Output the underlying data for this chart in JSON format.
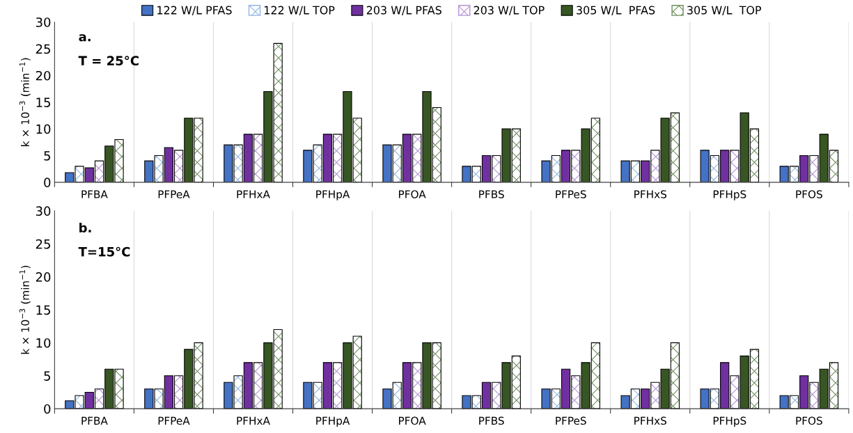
{
  "chart_data": [
    {
      "type": "bar",
      "ylabel": "k × 10$^{−3}$ (min$^{−1}$)",
      "annotations": [
        "a.",
        "T = 25°C"
      ],
      "categories": [
        "PFBA",
        "PFPeA",
        "PFHxA",
        "PFHpA",
        "PFOA",
        "PFBS",
        "PFPeS",
        "PFHxS",
        "PFHpS",
        "PFOS"
      ],
      "series": [
        {
          "name": "122 W/L PFAS",
          "color": "#4472c4",
          "values": [
            1.8,
            4,
            7,
            6,
            7,
            3,
            4,
            4,
            6,
            3
          ]
        },
        {
          "name": "122 W/L TOP",
          "color": "#8db4e2",
          "values": [
            3,
            5,
            7,
            7,
            7,
            3,
            5,
            4,
            5,
            3
          ]
        },
        {
          "name": "203 W/L PFAS",
          "color": "#7030a0",
          "values": [
            2.7,
            6.5,
            9,
            9,
            9,
            5,
            6,
            4,
            6,
            5
          ]
        },
        {
          "name": "203 W/L TOP",
          "color": "#b48fd6",
          "values": [
            4,
            6,
            9,
            9,
            9,
            5,
            6,
            6,
            6,
            5
          ]
        },
        {
          "name": "305 W/L  PFAS",
          "color": "#375623",
          "values": [
            6.8,
            12,
            17,
            17,
            17,
            10,
            10,
            12,
            13,
            9
          ]
        },
        {
          "name": "305 W/L  TOP",
          "color": "#6f8f5f",
          "values": [
            8,
            12,
            26,
            12,
            14,
            10,
            12,
            13,
            10,
            6
          ]
        }
      ],
      "ylim": [
        0,
        30
      ],
      "yticks": [
        0,
        5,
        10,
        15,
        20,
        25,
        30
      ],
      "grid": "x",
      "legend": "top"
    },
    {
      "type": "bar",
      "ylabel": "k × 10$^{−3}$ (min$^{−1}$)",
      "annotations": [
        "b.",
        "T=15°C"
      ],
      "categories": [
        "PFBA",
        "PFPeA",
        "PFHxA",
        "PFHpA",
        "PFOA",
        "PFBS",
        "PFPeS",
        "PFHxS",
        "PFHpS",
        "PFOS"
      ],
      "series": [
        {
          "color": "#4472c4",
          "values": [
            1.2,
            3,
            4,
            4,
            3,
            2,
            3,
            2,
            3,
            2
          ]
        },
        {
          "color": "#8db4e2",
          "values": [
            2,
            3,
            5,
            4,
            4,
            2,
            3,
            3,
            3,
            2
          ]
        },
        {
          "color": "#7030a0",
          "values": [
            2.5,
            5,
            7,
            7,
            7,
            4,
            6,
            3,
            7,
            5
          ]
        },
        {
          "color": "#b48fd6",
          "values": [
            3,
            5,
            7,
            7,
            7,
            4,
            5,
            4,
            5,
            4
          ]
        },
        {
          "color": "#375623",
          "values": [
            6,
            9,
            10,
            10,
            10,
            7,
            7,
            6,
            8,
            6
          ]
        },
        {
          "color": "#6f8f5f",
          "values": [
            6,
            10,
            12,
            11,
            10,
            8,
            10,
            10,
            9,
            7
          ]
        }
      ],
      "ylim": [
        0,
        30
      ],
      "yticks": [
        0,
        5,
        10,
        15,
        20,
        25,
        30
      ],
      "grid": "x"
    }
  ]
}
